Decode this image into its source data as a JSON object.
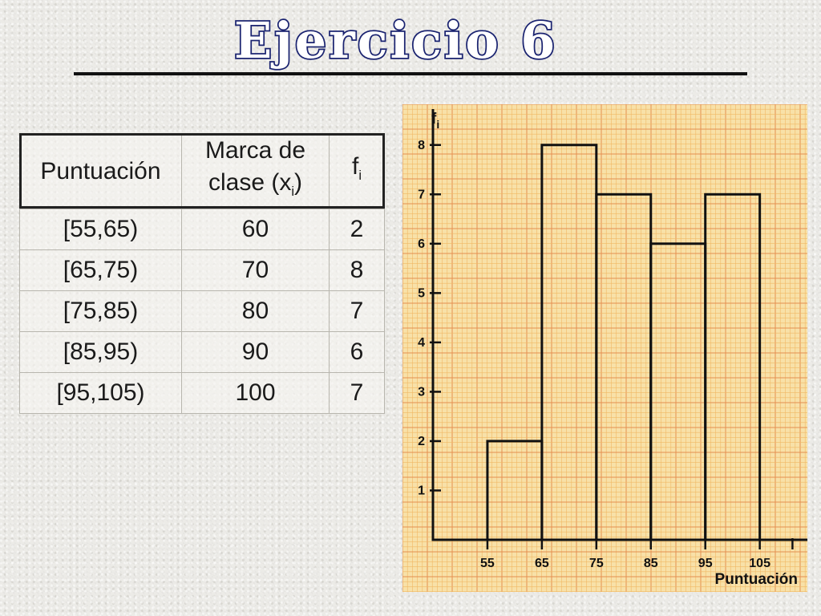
{
  "title": "Ejercicio 6",
  "table": {
    "headers": {
      "col1": "Puntuación",
      "col2_line1": "Marca de",
      "col2_line2_prefix": "clase (x",
      "col2_sub": "i",
      "col2_line2_suffix": ")",
      "col3_main": "f",
      "col3_sub": "i"
    },
    "rows": [
      {
        "interval": "[55,65)",
        "mark": "60",
        "freq": "2"
      },
      {
        "interval": "[65,75)",
        "mark": "70",
        "freq": "8"
      },
      {
        "interval": "[75,85)",
        "mark": "80",
        "freq": "7"
      },
      {
        "interval": "[85,95)",
        "mark": "90",
        "freq": "6"
      },
      {
        "interval": "[95,105)",
        "mark": "100",
        "freq": "7"
      }
    ]
  },
  "chart_data": {
    "type": "bar",
    "subtype": "histogram",
    "bins": [
      [
        55,
        65
      ],
      [
        65,
        75
      ],
      [
        75,
        85
      ],
      [
        85,
        95
      ],
      [
        95,
        105
      ]
    ],
    "values": [
      2,
      8,
      7,
      6,
      7
    ],
    "x_ticks": [
      55,
      65,
      75,
      85,
      95,
      105
    ],
    "y_ticks": [
      1,
      2,
      3,
      4,
      5,
      6,
      7,
      8
    ],
    "xlabel": "Puntuación",
    "ylabel_main": "f",
    "ylabel_sub": "i",
    "xlim": [
      45,
      113
    ],
    "ylim": [
      0,
      8.5
    ],
    "grid": true,
    "grid_colors": {
      "paper": "#f8e1a8",
      "minor": "#f0b865",
      "major": "#e58f4f"
    },
    "bar_outline": "#111111"
  }
}
